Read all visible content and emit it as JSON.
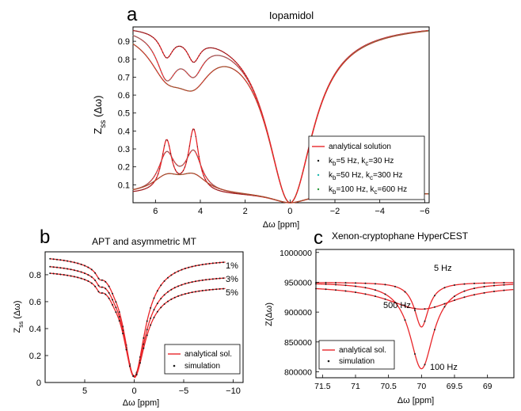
{
  "figure": {
    "background": "#ffffff"
  },
  "colors": {
    "analytical": "#e8262a",
    "sim_a": "#1a1a1a",
    "sim_b": "#20b9b0",
    "sim_c": "#2a9a3c",
    "sim_dot": "#1a1a1a"
  },
  "chart_data": [
    {
      "type": "line",
      "panel_label": "a",
      "title": "Iopamidol",
      "xlabel": "Δω [ppm]",
      "ylabel": "Z_ss (Δω)",
      "ylabel_main": "Z",
      "ylabel_sub": "ss",
      "ylabel_tail": " (Δω)",
      "xlim": [
        7,
        -6.2
      ],
      "ylim": [
        0,
        0.98
      ],
      "x_ticks": [
        6,
        4,
        2,
        0,
        -2,
        -4,
        -6
      ],
      "x_tick_labels": [
        "6",
        "4",
        "2",
        "0",
        "−2",
        "−4",
        "−6"
      ],
      "y_ticks": [
        0.1,
        0.2,
        0.3,
        0.4,
        0.5,
        0.6,
        0.7,
        0.8,
        0.9
      ],
      "y_tick_labels": [
        "0.1",
        "0.2",
        "0.3",
        "0.4",
        "0.5",
        "0.6",
        "0.7",
        "0.8",
        "0.9"
      ],
      "legend": {
        "position": "bottom-right",
        "entries": [
          {
            "label": "analytical solution",
            "marker": "line"
          },
          {
            "main": "k",
            "sub1": "b",
            "mid": "=5 Hz, k",
            "sub2": "c",
            "tail": "=30 Hz",
            "marker": "dot",
            "color_key": "sim_a"
          },
          {
            "main": "k",
            "sub1": "b",
            "mid": "=50 Hz, k",
            "sub2": "c",
            "tail": "=300 Hz",
            "marker": "dot",
            "color_key": "sim_b"
          },
          {
            "main": "k",
            "sub1": "b",
            "mid": "=100 Hz, k",
            "sub2": "c",
            "tail": "=600 Hz",
            "marker": "dot",
            "color_key": "sim_c"
          }
        ]
      },
      "series_params": {
        "upper": [
          {
            "d": [
              0.14,
              0.14
            ],
            "w": 0.35
          },
          {
            "d": [
              0.25,
              0.2
            ],
            "w": 0.55
          },
          {
            "d": [
              0.21,
              0.24
            ],
            "w": 0.95
          }
        ],
        "lower": [
          {
            "d": [
              0.3,
              0.38
            ],
            "w": 0.28
          },
          {
            "d": [
              0.22,
              0.24
            ],
            "w": 0.45
          },
          {
            "d": [
              0.09,
              0.1
            ],
            "w": 0.75
          }
        ]
      },
      "pool_offsets_ppm": [
        5.5,
        4.3
      ]
    },
    {
      "type": "line",
      "panel_label": "b",
      "title": "APT and asymmetric MT",
      "xlabel": "Δω [ppm]",
      "ylabel": "Z_ss (Δω)",
      "ylabel_main": "Z",
      "ylabel_sub": "ss",
      "ylabel_tail": " (Δω)",
      "xlim": [
        9,
        -11
      ],
      "ylim": [
        0,
        0.97
      ],
      "x_ticks": [
        5,
        0,
        -5,
        -10
      ],
      "x_tick_labels": [
        "5",
        "0",
        "−5",
        "−10"
      ],
      "y_ticks": [
        0,
        0.2,
        0.4,
        0.6,
        0.8
      ],
      "y_tick_labels": [
        "0",
        "0.2",
        "0.4",
        "0.6",
        "0.8"
      ],
      "series_labels": [
        "1%",
        "3%",
        "5%"
      ],
      "series": [
        {
          "name": "1%",
          "end_value": 0.92,
          "start_value": 0.95
        },
        {
          "name": "3%",
          "end_value": 0.8,
          "start_value": 0.89
        },
        {
          "name": "5%",
          "end_value": 0.72,
          "start_value": 0.84
        }
      ],
      "legend": {
        "position": "bottom-right",
        "entries": [
          {
            "label": "analytical sol.",
            "marker": "line"
          },
          {
            "label": "simulation",
            "marker": "dot"
          }
        ]
      }
    },
    {
      "type": "line",
      "panel_label": "c",
      "title": "Xenon-cryptophane HyperCEST",
      "xlabel": "Δω [ppm]",
      "ylabel": "Z(Δω)",
      "xlim": [
        71.6,
        68.6
      ],
      "ylim": [
        790000,
        1005000
      ],
      "x_ticks": [
        71.5,
        71,
        70.5,
        70,
        69.5,
        69
      ],
      "x_tick_labels": [
        "71.5",
        "71",
        "70.5",
        "70",
        "69.5",
        "69"
      ],
      "y_ticks": [
        800000,
        850000,
        900000,
        950000,
        1000000
      ],
      "y_tick_labels": [
        "800000",
        "850000",
        "900000",
        "950000",
        "1000000"
      ],
      "series_labels": [
        "5 Hz",
        "500 Hz",
        "100 Hz"
      ],
      "series": [
        {
          "name": "5 Hz",
          "baseline": 950000,
          "depth": 75000,
          "width": 0.13,
          "center": 70.0
        },
        {
          "name": "500 Hz",
          "baseline": 945000,
          "depth": 40000,
          "width": 0.65,
          "center": 70.0
        },
        {
          "name": "100 Hz",
          "baseline": 950000,
          "depth": 145000,
          "width": 0.22,
          "center": 70.0
        }
      ],
      "legend": {
        "position": "bottom-left",
        "entries": [
          {
            "label": "analytical sol.",
            "marker": "line"
          },
          {
            "label": "simulation",
            "marker": "dot"
          }
        ]
      }
    }
  ]
}
